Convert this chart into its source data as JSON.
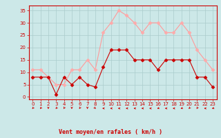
{
  "hours": [
    0,
    1,
    2,
    3,
    4,
    5,
    6,
    7,
    8,
    9,
    10,
    11,
    12,
    13,
    14,
    15,
    16,
    17,
    18,
    19,
    20,
    21,
    22,
    23
  ],
  "wind_avg": [
    8,
    8,
    8,
    1,
    8,
    5,
    8,
    5,
    4,
    12,
    19,
    19,
    19,
    15,
    15,
    15,
    11,
    15,
    15,
    15,
    15,
    8,
    8,
    4
  ],
  "wind_gust": [
    11,
    11,
    8,
    5,
    5,
    11,
    11,
    15,
    11,
    26,
    30,
    35,
    33,
    30,
    26,
    30,
    30,
    26,
    26,
    30,
    26,
    19,
    15,
    11
  ],
  "bg_color": "#cce8e8",
  "grid_color": "#aacccc",
  "line_avg_color": "#cc0000",
  "line_gust_color": "#ff9999",
  "marker_avg_color": "#cc0000",
  "marker_gust_color": "#ffaaaa",
  "xlabel": "Vent moyen/en rafales ( km/h )",
  "xlabel_color": "#cc0000",
  "tick_color": "#cc0000",
  "spine_color": "#cc0000",
  "arrow_color": "#cc0000",
  "ylim": [
    -1,
    37
  ],
  "xlim": [
    -0.5,
    23.5
  ],
  "yticks": [
    0,
    5,
    10,
    15,
    20,
    25,
    30,
    35
  ],
  "xticks": [
    0,
    1,
    2,
    3,
    4,
    5,
    6,
    7,
    8,
    9,
    10,
    11,
    12,
    13,
    14,
    15,
    16,
    17,
    18,
    19,
    20,
    21,
    22,
    23
  ],
  "xlabel_fontsize": 6.0,
  "tick_fontsize": 5.0
}
